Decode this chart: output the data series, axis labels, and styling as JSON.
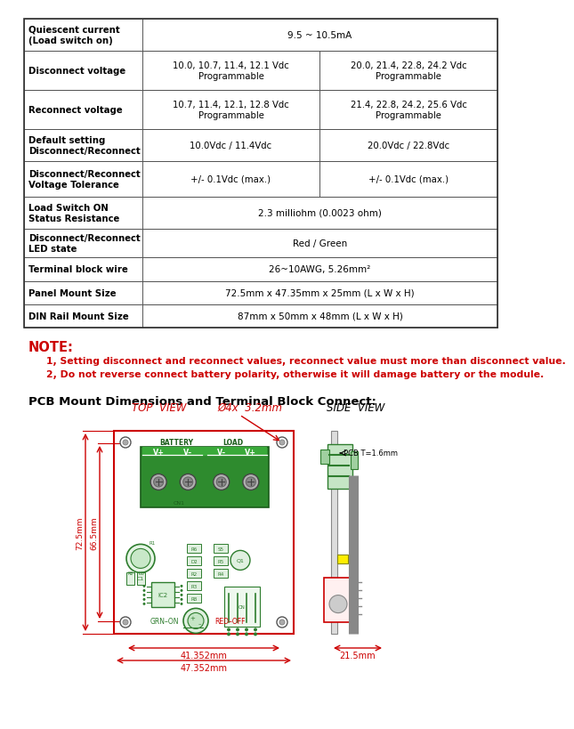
{
  "table_rows": [
    {
      "label": "Quiescent current\n(Load switch on)",
      "col1": "9.5 ~ 10.5mA",
      "col2": "",
      "span": true
    },
    {
      "label": "Disconnect voltage",
      "col1": "10.0, 10.7, 11.4, 12.1 Vdc\nProgrammable",
      "col2": "20.0, 21.4, 22.8, 24.2 Vdc\nProgrammable",
      "span": false
    },
    {
      "label": "Reconnect voltage",
      "col1": "10.7, 11.4, 12.1, 12.8 Vdc\nProgrammable",
      "col2": "21.4, 22.8, 24.2, 25.6 Vdc\nProgrammable",
      "span": false
    },
    {
      "label": "Default setting\nDisconnect/Reconnect",
      "col1": "10.0Vdc / 11.4Vdc",
      "col2": "20.0Vdc / 22.8Vdc",
      "span": false
    },
    {
      "label": "Disconnect/Reconnect\nVoltage Tolerance",
      "col1": "+/- 0.1Vdc (max.)",
      "col2": "+/- 0.1Vdc (max.)",
      "span": false
    },
    {
      "label": "Load Switch ON\nStatus Resistance",
      "col1": "2.3 milliohm (0.0023 ohm)",
      "col2": "",
      "span": true
    },
    {
      "label": "Disconnect/Reconnect\nLED state",
      "col1": "Red / Green",
      "col2": "",
      "span": true
    },
    {
      "label": "Terminal block wire",
      "col1": "26~10AWG, 5.26mm²",
      "col2": "",
      "span": true
    },
    {
      "label": "Panel Mount Size",
      "col1": "72.5mm x 47.35mm x 25mm (L x W x H)",
      "col2": "",
      "span": true
    },
    {
      "label": "DIN Rail Mount Size",
      "col1": "87mm x 50mm x 48mm (L x W x H)",
      "col2": "",
      "span": true
    }
  ],
  "note_title": "NOTE:",
  "note_lines": [
    "1, Setting disconnect and reconnect values, reconnect value must more than disconnect value.",
    "2, Do not reverse connect battery polarity, otherwise it will damage battery or the module."
  ],
  "pcb_title": "PCB Mount Dimensions and Terminal Block Connect:",
  "bg_color": "#ffffff",
  "red_color": "#cc0000",
  "green_color": "#2e7d2e",
  "dk_green": "#1a5c1a",
  "table_border": "#555555"
}
